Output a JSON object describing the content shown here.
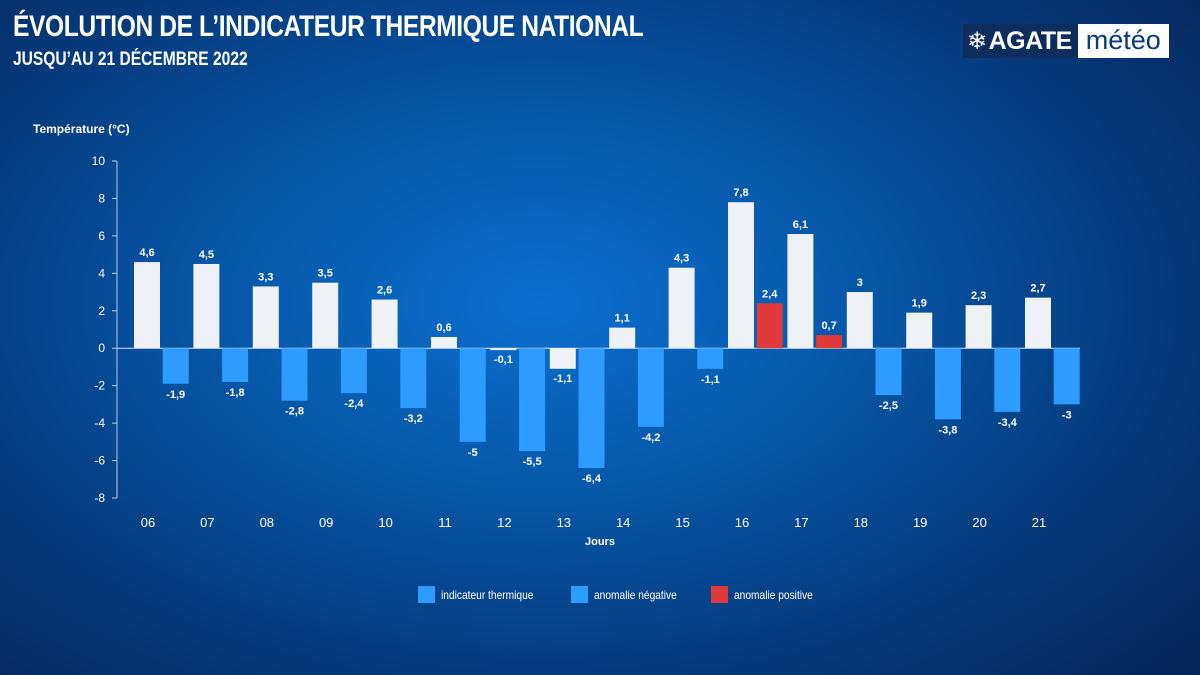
{
  "header": {
    "title": "ÉVOLUTION DE L’INDICATEUR THERMIQUE NATIONAL",
    "subtitle": "JUSQU’AU 21 DÉCEMBRE 2022"
  },
  "logo": {
    "brand": "AGATE",
    "suffix": "météo",
    "icon": "snowflake-icon"
  },
  "colors": {
    "indicateur": "#eef1f6",
    "anomalie_negative": "#2e9bff",
    "anomalie_positive": "#e03a3a",
    "legend_indicateur_swatch": "#2e9bff"
  },
  "chart_data": {
    "type": "bar",
    "xlabel": "Jours",
    "ylabel": "Température (°C)",
    "ylim": [
      -8,
      10
    ],
    "yticks": [
      10,
      8,
      6,
      4,
      2,
      0,
      -2,
      -4,
      -6,
      -8
    ],
    "categories": [
      "06",
      "07",
      "08",
      "09",
      "10",
      "11",
      "12",
      "13",
      "14",
      "15",
      "16",
      "17",
      "18",
      "19",
      "20",
      "21"
    ],
    "series": [
      {
        "name": "indicateur thermique",
        "values": [
          4.6,
          4.5,
          3.3,
          3.5,
          2.6,
          0.6,
          -0.1,
          -1.1,
          1.1,
          4.3,
          7.8,
          6.1,
          3,
          1.9,
          2.3,
          2.7
        ],
        "labels": [
          "4,6",
          "4,5",
          "3,3",
          "3,5",
          "2,6",
          "0,6",
          "-0,1",
          "-1,1",
          "1,1",
          "4,3",
          "7,8",
          "6,1",
          "3",
          "1,9",
          "2,3",
          "2,7"
        ]
      },
      {
        "name": "anomalie",
        "values": [
          -1.9,
          -1.8,
          -2.8,
          -2.4,
          -3.2,
          -5,
          -5.5,
          -6.4,
          -4.2,
          -1.1,
          2.4,
          0.7,
          -2.5,
          -3.8,
          -3.4,
          -3
        ],
        "labels": [
          "-1,9",
          "-1,8",
          "-2,8",
          "-2,4",
          "-3,2",
          "-5",
          "-5,5",
          "-6,4",
          "-4,2",
          "-1,1",
          "2,4",
          "0,7",
          "-2,5",
          "-3,8",
          "-3,4",
          "-3"
        ]
      }
    ],
    "legend": [
      "indicateur thermique",
      "anomalie négative",
      "anomalie positive"
    ],
    "legend_position": "bottom",
    "grid": false
  }
}
